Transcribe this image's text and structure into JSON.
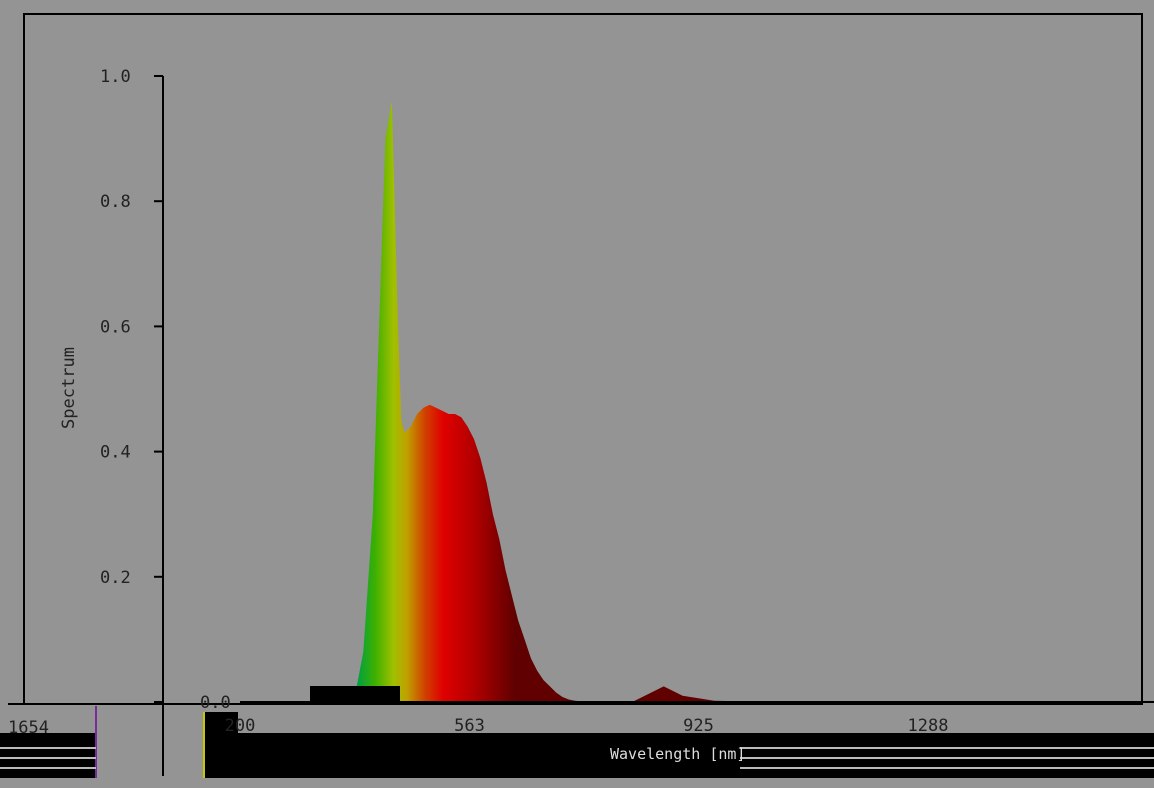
{
  "chart_data": {
    "type": "area",
    "title": "",
    "xlabel": "Wavelength [nm]",
    "ylabel": "Spectrum",
    "xlim": [
      0,
      1554
    ],
    "ylim": [
      0.0,
      1.05
    ],
    "x_ticks": [
      "200",
      "563",
      "925",
      "1288"
    ],
    "x_tick_values": [
      200,
      563,
      925,
      1288
    ],
    "x_left_edge_label": "1654",
    "y_ticks": [
      "1.0",
      "0.8",
      "0.6",
      "0.4",
      "0.2",
      "0.0"
    ],
    "y_tick_values": [
      1.0,
      0.8,
      0.6,
      0.4,
      0.2,
      0.0
    ],
    "grid": false,
    "fill": "visible-spectrum gradient",
    "series": [
      {
        "x": [
          380,
          395,
          410,
          420,
          430,
          440,
          450,
          455,
          460,
          470,
          480,
          490,
          500,
          510,
          520,
          530,
          540,
          550,
          560,
          570,
          580,
          590,
          600,
          610,
          620,
          630,
          640,
          650,
          660,
          670,
          680,
          690,
          700,
          710,
          720,
          730,
          740,
          750,
          780,
          820,
          870,
          900,
          950,
          1000,
          1100,
          1200
        ],
        "y": [
          0.0,
          0.08,
          0.3,
          0.6,
          0.9,
          0.96,
          0.6,
          0.45,
          0.43,
          0.44,
          0.46,
          0.47,
          0.475,
          0.47,
          0.465,
          0.46,
          0.46,
          0.455,
          0.44,
          0.42,
          0.39,
          0.35,
          0.3,
          0.26,
          0.21,
          0.17,
          0.13,
          0.1,
          0.07,
          0.05,
          0.035,
          0.025,
          0.015,
          0.008,
          0.004,
          0.002,
          0.001,
          0.0,
          0.0,
          0.0,
          0.025,
          0.01,
          0.002,
          0.001,
          0.001,
          0.0
        ]
      }
    ]
  }
}
